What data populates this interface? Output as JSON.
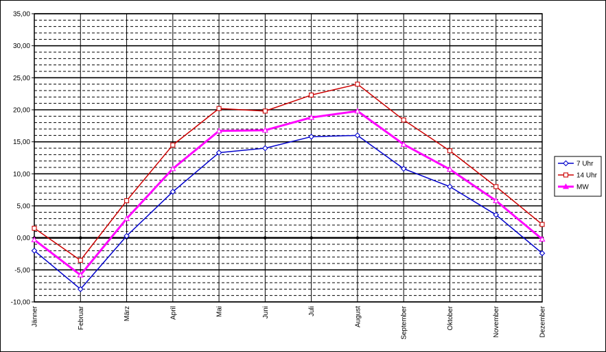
{
  "chart_data": {
    "type": "line",
    "categories": [
      "Jänner",
      "Februar",
      "März",
      "April",
      "Mai",
      "Juni",
      "Juli",
      "August",
      "September",
      "Oktober",
      "November",
      "Dezember"
    ],
    "y_ticks": [
      -10,
      -5,
      0,
      5,
      10,
      15,
      20,
      25,
      30,
      35
    ],
    "y_tick_labels": [
      "-10,00",
      "-5,00",
      "0,00",
      "5,00",
      "10,00",
      "15,00",
      "20,00",
      "25,00",
      "30,00",
      "35,00"
    ],
    "ylim": [
      -10,
      35
    ],
    "grid": true,
    "legend_position": "right",
    "title": "",
    "xlabel": "",
    "ylabel": "",
    "series": [
      {
        "name": "7 Uhr",
        "color": "#0000cc",
        "marker": "diamond",
        "values": [
          -2.0,
          -8.0,
          0.3,
          7.2,
          13.3,
          14.0,
          15.8,
          16.0,
          10.8,
          8.0,
          3.6,
          -2.4
        ]
      },
      {
        "name": "14 Uhr",
        "color": "#cc0000",
        "marker": "square",
        "values": [
          1.5,
          -3.5,
          5.8,
          14.5,
          20.2,
          19.8,
          22.3,
          24.0,
          18.4,
          13.6,
          8.0,
          2.1
        ]
      },
      {
        "name": "MW",
        "color": "#ff00ff",
        "marker": "triangle",
        "values": [
          -0.3,
          -5.8,
          3.0,
          10.8,
          16.7,
          16.8,
          18.8,
          19.8,
          14.6,
          10.7,
          5.8,
          -0.2
        ]
      }
    ]
  }
}
